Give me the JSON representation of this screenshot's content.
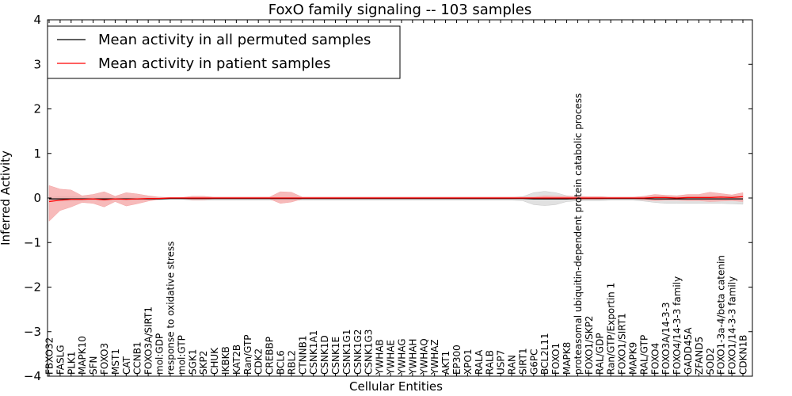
{
  "chart_data": {
    "type": "line",
    "title": "FoxO family signaling -- 103 samples",
    "xlabel": "Cellular Entities",
    "ylabel": "Inferred Activity",
    "ylim": [
      -4,
      4
    ],
    "yticks": [
      -4,
      -3,
      -2,
      -1,
      0,
      1,
      2,
      3,
      4
    ],
    "ytick_labels": [
      "−4",
      "−3",
      "−2",
      "−1",
      "0",
      "1",
      "2",
      "3",
      "4"
    ],
    "grid": false,
    "legend_position": "top-left",
    "categories": [
      "FBXO32",
      "FASLG",
      "PLK1",
      "MAPK10",
      "SFN",
      "FOXO3",
      "MST1",
      "CAT",
      "CCNB1",
      "FOXO3A/SIRT1",
      "mol:GDP",
      "response to oxidative stress",
      "mol:GTP",
      "SGK1",
      "SKP2",
      "CHUK",
      "IKBKB",
      "KAT2B",
      "Ran/GTP",
      "CDK2",
      "CREBBP",
      "BCL6",
      "RBL2",
      "CTNNB1",
      "CSNK1A1",
      "CSNK1D",
      "CSNK1E",
      "CSNK1G1",
      "CSNK1G2",
      "CSNK1G3",
      "YWHAB",
      "YWHAE",
      "YWHAG",
      "YWHAH",
      "YWHAQ",
      "YWHAZ",
      "AKT1",
      "EP300",
      "XPO1",
      "RALA",
      "RALB",
      "USP7",
      "RAN",
      "SIRT1",
      "G6PC",
      "BCL2L11",
      "FOXO1",
      "MAPK8",
      "proteasomal ubiquitin-dependent protein catabolic process",
      "FOXO1/SKP2",
      "RAL/GDP",
      "Ran/GTP/Exportin 1",
      "FOXO1/SIRT1",
      "MAPK9",
      "RAL/GTP",
      "FOXO4",
      "FOXO3A/14-3-3",
      "FOXO4/14-3-3 family",
      "GADD45A",
      "ZFAND5",
      "SOD2",
      "FOXO1-3a-4/beta catenin",
      "FOXO1/14-3-3 family",
      "CDKN1B"
    ],
    "series": [
      {
        "name": "Mean activity in all permuted samples",
        "color": "#000000",
        "band_color": "#c8c8c8",
        "values": [
          -0.02,
          -0.02,
          -0.02,
          -0.02,
          -0.02,
          -0.02,
          -0.02,
          -0.02,
          -0.02,
          -0.02,
          -0.02,
          -0.01,
          -0.01,
          -0.01,
          -0.01,
          -0.01,
          -0.01,
          -0.01,
          -0.01,
          -0.01,
          -0.01,
          -0.01,
          -0.01,
          -0.01,
          -0.01,
          -0.01,
          -0.01,
          -0.01,
          -0.01,
          -0.01,
          -0.01,
          -0.01,
          -0.01,
          -0.01,
          -0.01,
          -0.01,
          -0.01,
          -0.01,
          -0.01,
          -0.01,
          -0.01,
          -0.01,
          -0.01,
          -0.01,
          -0.02,
          -0.02,
          -0.02,
          -0.02,
          -0.01,
          -0.01,
          -0.01,
          -0.01,
          -0.01,
          -0.01,
          -0.01,
          -0.02,
          -0.02,
          -0.02,
          -0.02,
          -0.02,
          -0.02,
          -0.02,
          -0.02,
          -0.02
        ],
        "upper": [
          0.02,
          0.03,
          0.03,
          0.02,
          0.02,
          0.02,
          0.02,
          0.02,
          0.02,
          0.02,
          0.02,
          0.01,
          0.01,
          0.02,
          0.02,
          0.02,
          0.02,
          0.02,
          0.02,
          0.02,
          0.02,
          0.02,
          0.02,
          0.02,
          0.02,
          0.02,
          0.02,
          0.02,
          0.02,
          0.02,
          0.02,
          0.02,
          0.02,
          0.02,
          0.02,
          0.02,
          0.02,
          0.02,
          0.02,
          0.02,
          0.02,
          0.02,
          0.02,
          0.03,
          0.12,
          0.15,
          0.12,
          0.05,
          0.03,
          0.03,
          0.03,
          0.02,
          0.02,
          0.02,
          0.03,
          0.05,
          0.05,
          0.05,
          0.05,
          0.05,
          0.05,
          0.05,
          0.05,
          0.05
        ],
        "lower": [
          -0.06,
          -0.07,
          -0.07,
          -0.06,
          -0.05,
          -0.05,
          -0.05,
          -0.05,
          -0.05,
          -0.04,
          -0.04,
          -0.03,
          -0.03,
          -0.05,
          -0.05,
          -0.05,
          -0.05,
          -0.05,
          -0.05,
          -0.05,
          -0.05,
          -0.05,
          -0.05,
          -0.05,
          -0.05,
          -0.05,
          -0.05,
          -0.05,
          -0.05,
          -0.05,
          -0.05,
          -0.05,
          -0.05,
          -0.05,
          -0.05,
          -0.05,
          -0.05,
          -0.05,
          -0.05,
          -0.05,
          -0.05,
          -0.05,
          -0.05,
          -0.06,
          -0.15,
          -0.17,
          -0.15,
          -0.08,
          -0.06,
          -0.06,
          -0.06,
          -0.05,
          -0.05,
          -0.05,
          -0.07,
          -0.1,
          -0.12,
          -0.12,
          -0.12,
          -0.12,
          -0.12,
          -0.12,
          -0.13,
          -0.14
        ]
      },
      {
        "name": "Mean activity in patient samples",
        "color": "#ff0000",
        "band_color": "#f4a3a3",
        "values": [
          -0.08,
          -0.05,
          -0.03,
          -0.03,
          -0.02,
          -0.04,
          -0.02,
          -0.03,
          -0.02,
          -0.01,
          -0.01,
          0.0,
          0.0,
          0.0,
          0.0,
          0.0,
          0.0,
          0.0,
          0.0,
          0.0,
          0.0,
          0.0,
          0.0,
          0.0,
          0.0,
          0.0,
          0.0,
          0.0,
          0.0,
          0.0,
          0.0,
          0.0,
          0.0,
          0.0,
          0.0,
          0.0,
          0.0,
          0.0,
          0.0,
          0.0,
          0.0,
          0.0,
          0.0,
          0.0,
          0.0,
          0.0,
          0.0,
          0.0,
          0.0,
          0.0,
          0.0,
          0.0,
          0.0,
          0.0,
          0.0,
          0.01,
          0.01,
          0.0,
          0.01,
          0.01,
          0.01,
          0.02,
          0.01,
          0.03
        ],
        "upper": [
          0.28,
          0.2,
          0.18,
          0.05,
          0.08,
          0.14,
          0.04,
          0.12,
          0.09,
          0.05,
          0.02,
          0.01,
          0.01,
          0.04,
          0.04,
          0.02,
          0.02,
          0.02,
          0.02,
          0.02,
          0.02,
          0.14,
          0.13,
          0.02,
          0.02,
          0.02,
          0.02,
          0.02,
          0.02,
          0.02,
          0.02,
          0.02,
          0.02,
          0.02,
          0.02,
          0.02,
          0.02,
          0.02,
          0.02,
          0.02,
          0.02,
          0.02,
          0.02,
          0.02,
          0.02,
          0.05,
          0.04,
          0.04,
          0.04,
          0.03,
          0.03,
          0.02,
          0.02,
          0.02,
          0.04,
          0.08,
          0.06,
          0.05,
          0.08,
          0.08,
          0.13,
          0.1,
          0.07,
          0.12
        ],
        "lower": [
          -0.52,
          -0.28,
          -0.2,
          -0.1,
          -0.12,
          -0.2,
          -0.08,
          -0.18,
          -0.13,
          -0.07,
          -0.03,
          -0.01,
          -0.01,
          -0.04,
          -0.04,
          -0.02,
          -0.02,
          -0.02,
          -0.02,
          -0.02,
          -0.02,
          -0.12,
          -0.09,
          -0.02,
          -0.02,
          -0.02,
          -0.02,
          -0.02,
          -0.02,
          -0.02,
          -0.02,
          -0.02,
          -0.02,
          -0.02,
          -0.02,
          -0.02,
          -0.02,
          -0.02,
          -0.02,
          -0.02,
          -0.02,
          -0.02,
          -0.02,
          -0.02,
          -0.02,
          -0.03,
          -0.03,
          -0.03,
          -0.03,
          -0.03,
          -0.03,
          -0.02,
          -0.02,
          -0.02,
          -0.04,
          -0.06,
          -0.05,
          -0.05,
          -0.06,
          -0.06,
          -0.08,
          -0.07,
          -0.06,
          -0.08
        ]
      }
    ]
  }
}
